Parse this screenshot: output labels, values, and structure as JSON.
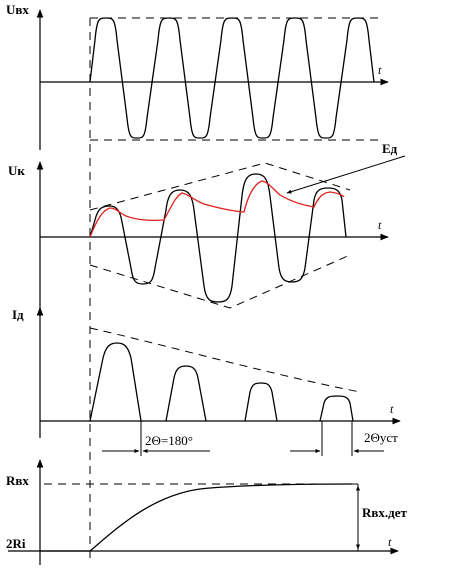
{
  "labels": {
    "u_in": "Uвх",
    "u_k": "Uк",
    "i_d": "Iд",
    "e_d": "Eд",
    "r_in": "Rвх",
    "r_in_det": "Rвх.дет",
    "two_ri": "2Ri",
    "angle": "2Θ=180°",
    "angle_ss": "2Θуст",
    "t": "t"
  }
}
